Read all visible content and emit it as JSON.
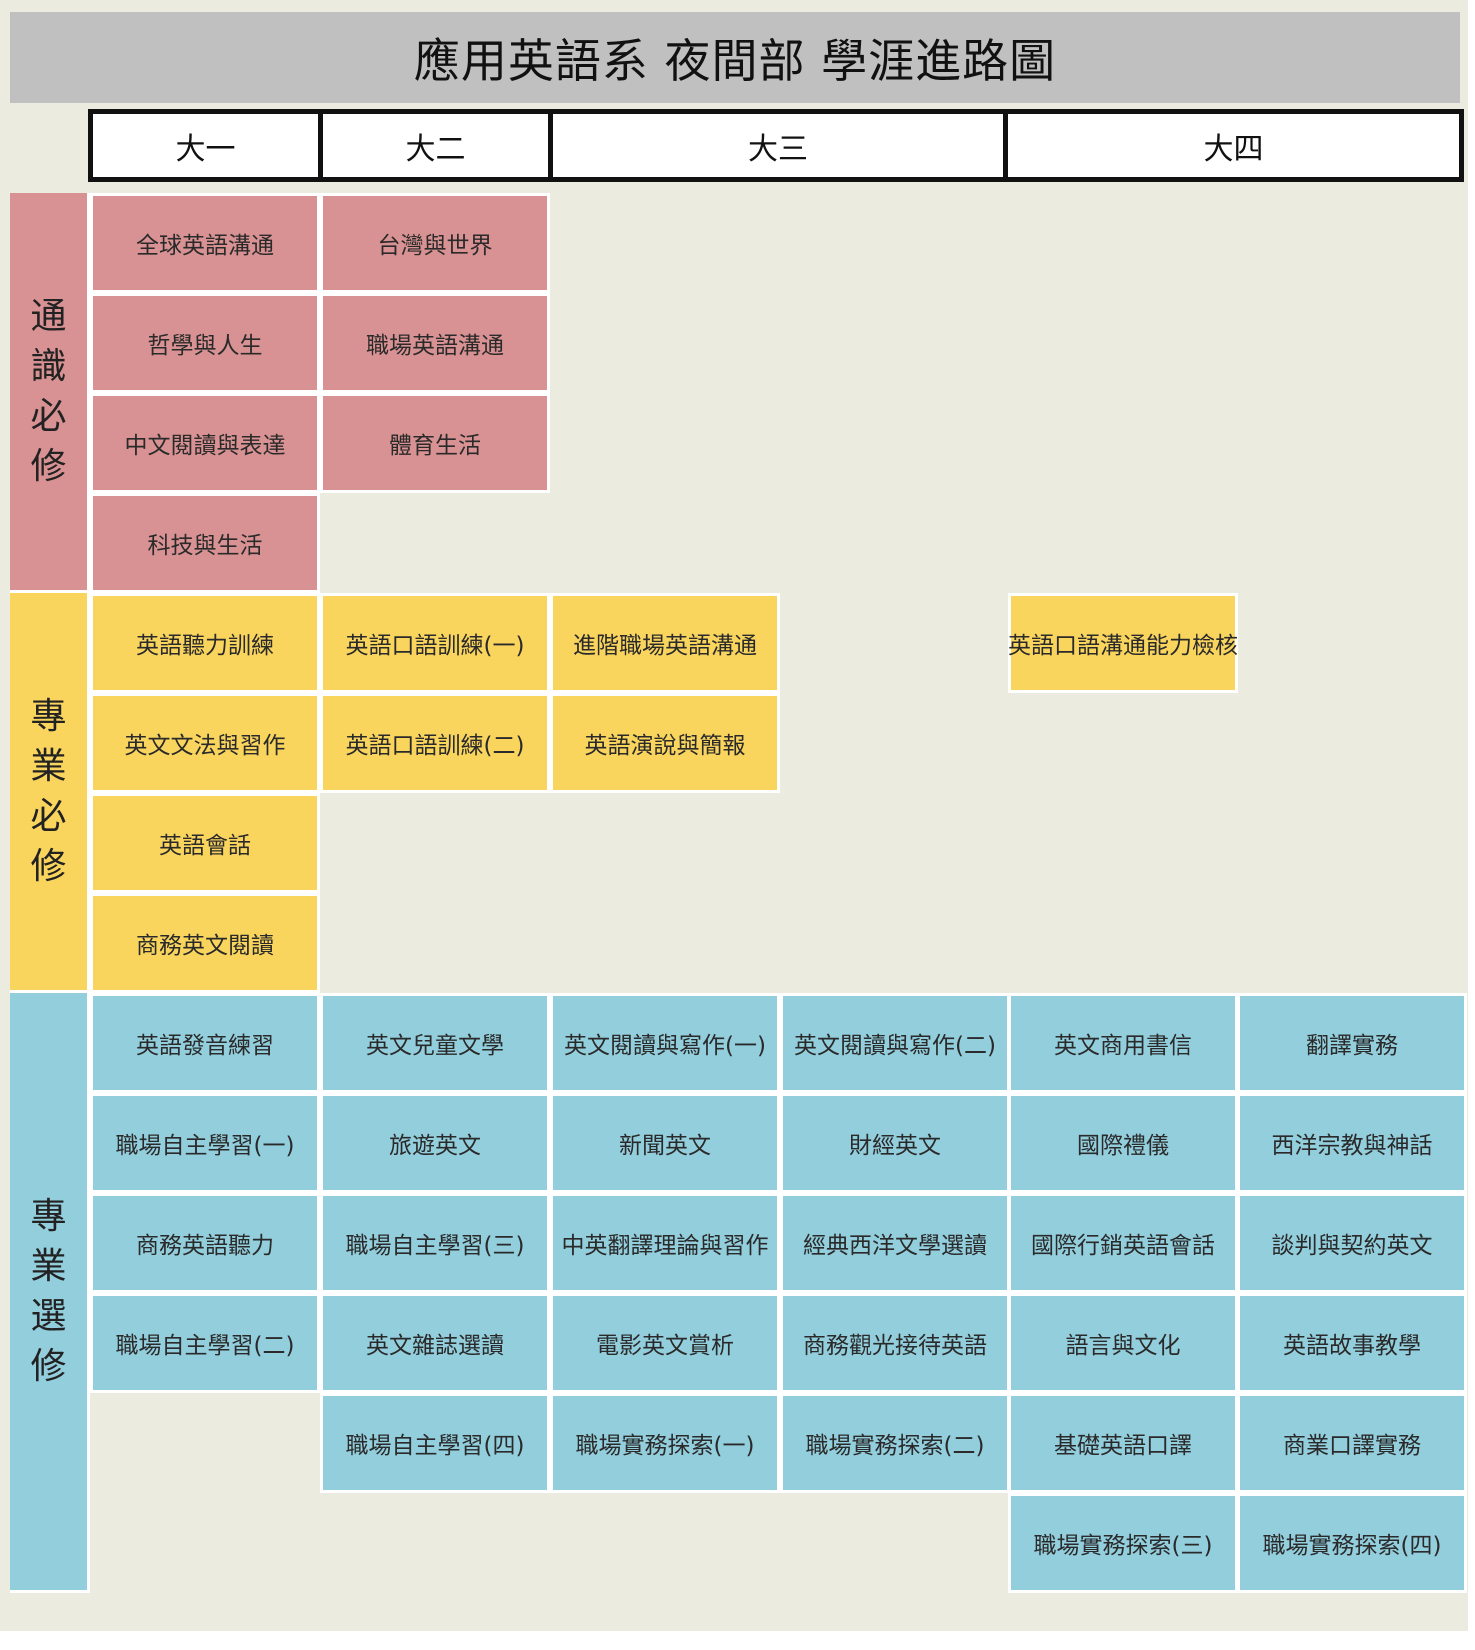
{
  "title": "應用英語系 夜間部 學涯進路圖",
  "years": [
    "大一",
    "大二",
    "大三",
    "大四"
  ],
  "categories": {
    "general": "通識必修",
    "major_required": "專業必修",
    "major_elective": "專業選修"
  },
  "colors": {
    "general": "#d99293",
    "major_required": "#fad55e",
    "major_elective": "#93cedd",
    "title_bar": "#c0c0c0",
    "background": "#ecebdf"
  },
  "general_required": {
    "col1": [
      "全球英語溝通",
      "哲學與人生",
      "中文閱讀與表達",
      "科技與生活"
    ],
    "col2": [
      "台灣與世界",
      "職場英語溝通",
      "體育生活"
    ]
  },
  "major_required": {
    "col1": [
      "英語聽力訓練",
      "英文文法與習作",
      "英語會話",
      "商務英文閱讀"
    ],
    "col2": [
      "英語口語訓練(一)",
      "英語口語訓練(二)"
    ],
    "col3": [
      "進階職場英語溝通",
      "英語演說與簡報"
    ],
    "col5": [
      "英語口語溝通能力檢核"
    ]
  },
  "major_elective": {
    "col1": [
      "英語發音練習",
      "職場自主學習(一)",
      "商務英語聽力",
      "職場自主學習(二)"
    ],
    "col2": [
      "英文兒童文學",
      "旅遊英文",
      "職場自主學習(三)",
      "英文雜誌選讀",
      "職場自主學習(四)"
    ],
    "col3": [
      "英文閱讀與寫作(一)",
      "新聞英文",
      "中英翻譯理論與習作",
      "電影英文賞析",
      "職場實務探索(一)"
    ],
    "col4": [
      "英文閱讀與寫作(二)",
      "財經英文",
      "經典西洋文學選讀",
      "商務觀光接待英語",
      "職場實務探索(二)"
    ],
    "col5": [
      "英文商用書信",
      "國際禮儀",
      "國際行銷英語會話",
      "語言與文化",
      "基礎英語口譯",
      "職場實務探索(三)"
    ],
    "col6": [
      "翻譯實務",
      "西洋宗教與神話",
      "談判與契約英文",
      "英語故事教學",
      "商業口譯實務",
      "職場實務探索(四)"
    ]
  }
}
